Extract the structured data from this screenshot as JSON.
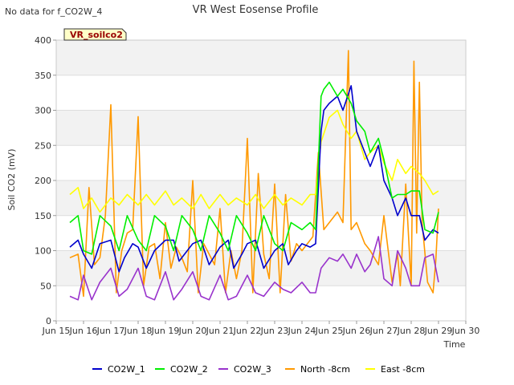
{
  "top_note": "No data for f_CO2W_4",
  "badge": "VR_soilco2",
  "chart_data": {
    "type": "line",
    "title": "VR West Eosense Profile",
    "xlabel": "Time",
    "ylabel": "Soil CO2 (mV)",
    "xlim": [
      15,
      30
    ],
    "ylim": [
      0,
      400
    ],
    "x_ticks": [
      15,
      16,
      17,
      18,
      19,
      20,
      21,
      22,
      23,
      24,
      25,
      26,
      27,
      28,
      29,
      30
    ],
    "x_tick_labels": [
      "Jun 15",
      "Jun 16",
      "Jun 17",
      "Jun 18",
      "Jun 19",
      "Jun 20",
      "Jun 21",
      "Jun 22",
      "Jun 23",
      "Jun 24",
      "Jun 25",
      "Jun 26",
      "Jun 27",
      "Jun 28",
      "Jun 29",
      "Jun 30"
    ],
    "y_ticks": [
      0,
      50,
      100,
      150,
      200,
      250,
      300,
      350,
      400
    ],
    "grid": true,
    "legend_position": "bottom",
    "series": [
      {
        "name": "CO2W_1",
        "color": "#0000cc",
        "x": [
          15.5,
          15.8,
          16.0,
          16.3,
          16.6,
          17.0,
          17.3,
          17.5,
          17.8,
          18.0,
          18.3,
          18.6,
          19.0,
          19.3,
          19.5,
          19.8,
          20.0,
          20.3,
          20.6,
          21.0,
          21.3,
          21.5,
          21.8,
          22.0,
          22.3,
          22.6,
          23.0,
          23.3,
          23.5,
          23.8,
          24.0,
          24.3,
          24.5,
          24.7,
          24.8,
          25.0,
          25.3,
          25.5,
          25.8,
          26.0,
          26.3,
          26.5,
          26.8,
          27.0,
          27.3,
          27.5,
          27.8,
          28.0,
          28.3,
          28.5,
          28.8,
          29.0
        ],
        "y": [
          105,
          115,
          95,
          75,
          110,
          115,
          70,
          90,
          110,
          105,
          75,
          100,
          115,
          115,
          85,
          100,
          110,
          115,
          80,
          105,
          115,
          75,
          95,
          110,
          115,
          75,
          100,
          110,
          80,
          100,
          110,
          105,
          110,
          270,
          300,
          310,
          320,
          300,
          335,
          270,
          240,
          220,
          250,
          200,
          175,
          150,
          175,
          150,
          150,
          115,
          130,
          125
        ]
      },
      {
        "name": "CO2W_2",
        "color": "#00ee00",
        "x": [
          15.5,
          15.8,
          16.0,
          16.3,
          16.6,
          17.0,
          17.3,
          17.6,
          18.0,
          18.3,
          18.6,
          19.0,
          19.3,
          19.6,
          20.0,
          20.3,
          20.6,
          21.0,
          21.3,
          21.6,
          22.0,
          22.3,
          22.6,
          23.0,
          23.3,
          23.6,
          24.0,
          24.3,
          24.5,
          24.7,
          24.8,
          25.0,
          25.3,
          25.5,
          25.8,
          26.0,
          26.3,
          26.5,
          26.8,
          27.0,
          27.3,
          27.5,
          27.8,
          28.0,
          28.3,
          28.5,
          28.8,
          29.0
        ],
        "y": [
          140,
          150,
          100,
          95,
          150,
          135,
          100,
          150,
          115,
          100,
          150,
          135,
          100,
          150,
          130,
          100,
          150,
          125,
          100,
          150,
          125,
          100,
          150,
          110,
          100,
          140,
          130,
          140,
          130,
          320,
          330,
          340,
          320,
          330,
          310,
          285,
          270,
          240,
          260,
          230,
          175,
          180,
          180,
          185,
          185,
          130,
          125,
          155
        ]
      },
      {
        "name": "CO2W_3",
        "color": "#9933cc",
        "x": [
          15.5,
          15.8,
          16.0,
          16.3,
          16.6,
          17.0,
          17.3,
          17.6,
          18.0,
          18.3,
          18.6,
          19.0,
          19.3,
          19.6,
          20.0,
          20.3,
          20.6,
          21.0,
          21.3,
          21.6,
          22.0,
          22.3,
          22.6,
          23.0,
          23.3,
          23.6,
          24.0,
          24.3,
          24.5,
          24.7,
          25.0,
          25.3,
          25.5,
          25.8,
          26.0,
          26.3,
          26.5,
          26.8,
          27.0,
          27.3,
          27.5,
          27.8,
          28.0,
          28.3,
          28.5,
          28.8,
          29.0
        ],
        "y": [
          35,
          30,
          65,
          30,
          55,
          75,
          35,
          45,
          75,
          35,
          30,
          70,
          30,
          45,
          70,
          35,
          30,
          65,
          30,
          35,
          65,
          40,
          35,
          55,
          45,
          40,
          55,
          40,
          40,
          75,
          90,
          85,
          95,
          75,
          95,
          70,
          80,
          120,
          60,
          50,
          100,
          75,
          50,
          50,
          90,
          95,
          55
        ]
      },
      {
        "name": "North -8cm",
        "color": "#ff9900",
        "x": [
          15.5,
          15.8,
          16.0,
          16.2,
          16.4,
          16.6,
          16.8,
          17.0,
          17.2,
          17.4,
          17.6,
          17.8,
          18.0,
          18.2,
          18.4,
          18.6,
          18.8,
          19.0,
          19.2,
          19.4,
          19.6,
          19.8,
          20.0,
          20.2,
          20.4,
          20.6,
          20.8,
          21.0,
          21.2,
          21.4,
          21.6,
          21.8,
          22.0,
          22.2,
          22.4,
          22.6,
          22.8,
          23.0,
          23.2,
          23.4,
          23.6,
          23.8,
          24.0,
          24.2,
          24.4,
          24.6,
          24.8,
          25.0,
          25.3,
          25.5,
          25.7,
          25.8,
          26.0,
          26.3,
          26.5,
          26.8,
          27.0,
          27.3,
          27.5,
          27.6,
          27.8,
          28.0,
          28.1,
          28.2,
          28.3,
          28.4,
          28.6,
          28.8,
          28.9,
          29.0
        ],
        "y": [
          90,
          95,
          35,
          190,
          80,
          90,
          150,
          308,
          40,
          100,
          125,
          130,
          291,
          50,
          105,
          110,
          60,
          140,
          75,
          105,
          90,
          70,
          200,
          40,
          110,
          95,
          80,
          160,
          40,
          100,
          60,
          100,
          260,
          40,
          210,
          95,
          60,
          195,
          40,
          180,
          85,
          110,
          100,
          110,
          120,
          240,
          130,
          140,
          155,
          140,
          385,
          130,
          140,
          110,
          100,
          80,
          150,
          55,
          95,
          50,
          195,
          50,
          370,
          125,
          340,
          140,
          55,
          40,
          85,
          160
        ]
      },
      {
        "name": "East -8cm",
        "color": "#ffff00",
        "x": [
          15.5,
          15.8,
          16.0,
          16.3,
          16.6,
          17.0,
          17.3,
          17.6,
          18.0,
          18.3,
          18.6,
          19.0,
          19.3,
          19.6,
          20.0,
          20.3,
          20.6,
          21.0,
          21.3,
          21.6,
          22.0,
          22.3,
          22.6,
          23.0,
          23.3,
          23.6,
          24.0,
          24.3,
          24.5,
          24.7,
          25.0,
          25.3,
          25.5,
          25.8,
          26.0,
          26.3,
          26.5,
          26.8,
          27.0,
          27.3,
          27.5,
          27.8,
          28.0,
          28.3,
          28.5,
          28.8,
          29.0
        ],
        "y": [
          180,
          190,
          160,
          175,
          155,
          175,
          165,
          180,
          165,
          180,
          165,
          185,
          165,
          175,
          160,
          180,
          160,
          180,
          165,
          175,
          165,
          180,
          160,
          180,
          165,
          175,
          165,
          180,
          180,
          255,
          290,
          300,
          280,
          260,
          270,
          230,
          240,
          250,
          225,
          200,
          230,
          210,
          220,
          210,
          200,
          180,
          185
        ]
      }
    ]
  }
}
